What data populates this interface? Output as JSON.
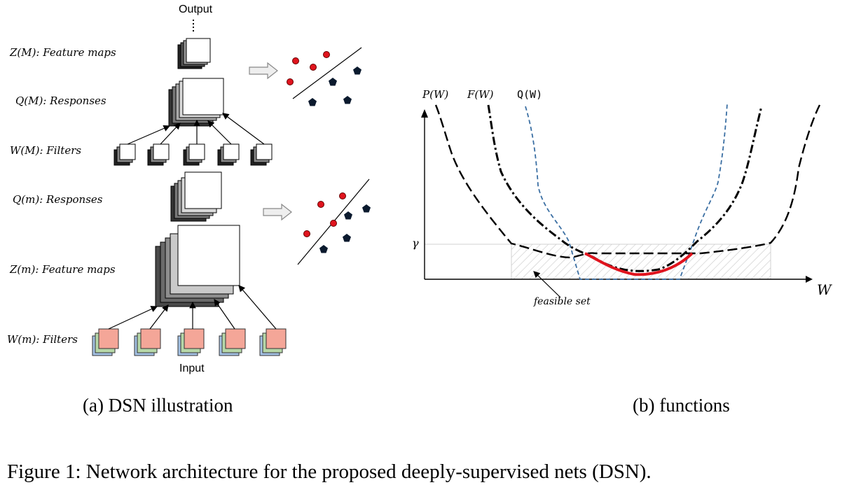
{
  "panel_a": {
    "output_label": "Output",
    "input_label": "Input",
    "zM_label": "Z(M): Feature maps",
    "qM_label": "Q(M): Responses",
    "wM_label": "W(M): Filters",
    "qm_label": "Q(m): Responses",
    "zm_label": "Z(m): Feature maps",
    "wm_label": "W(m): Filters",
    "subcaption": "(a) DSN illustration"
  },
  "panel_b": {
    "p_label": "P(W)",
    "f_label": "F(W)",
    "q_label": "Q(W)",
    "gamma_label": "γ",
    "x_label": "W",
    "feasible_label": "feasible set",
    "subcaption": "(b) functions"
  },
  "figure_caption": "Figure 1: Network architecture for the proposed deeply-supervised nets (DSN).",
  "colors": {
    "point_red": "#e0141e",
    "pentagon": "#0b1a2e",
    "q_curve": "#3b6fa3",
    "optimum": "#e0141e",
    "filter_pink": "#f4a698",
    "filter_green": "#b6d7a8",
    "filter_blue": "#a4c2e4"
  }
}
